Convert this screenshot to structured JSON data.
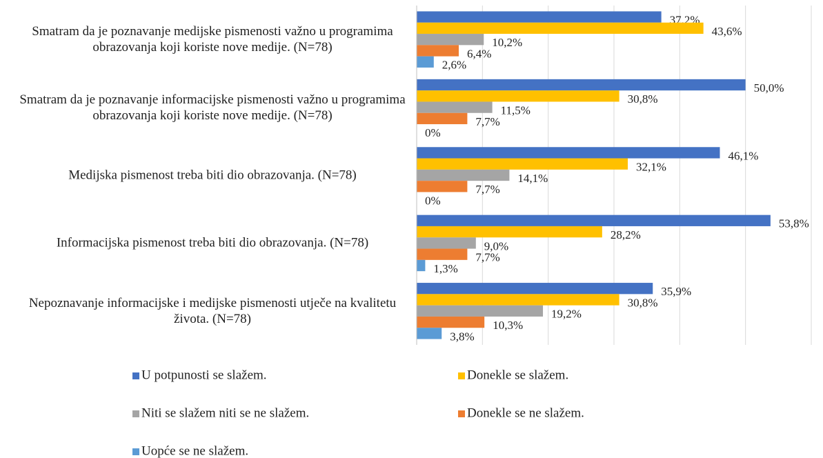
{
  "chart_data": {
    "type": "hbar",
    "categories": [
      "Smatram da je poznavanje medijske pismenosti važno u programima obrazovanja koji koriste nove medije. (N=78)",
      "Smatram da je poznavanje informacijske pismenosti važno u programima obrazovanja koji koriste nove medije. (N=78)",
      "Medijska pismenost treba biti dio obrazovanja. (N=78)",
      "Informacijska pismenost treba biti dio obrazovanja. (N=78)",
      "Nepoznavanje informacijske i medijske pismenosti utječe na kvalitetu života. (N=78)"
    ],
    "series": [
      {
        "name": "U potpunosti se slažem.",
        "color": "#4472c4",
        "values": [
          37.2,
          50.0,
          46.1,
          53.8,
          35.9
        ],
        "value_labels": [
          "37,2%",
          "50,0%",
          "46,1%",
          "53,8%",
          "35,9%"
        ]
      },
      {
        "name": "Donekle se slažem.",
        "color": "#ffc000",
        "values": [
          43.6,
          30.8,
          32.1,
          28.2,
          30.8
        ],
        "value_labels": [
          "43,6%",
          "30,8%",
          "32,1%",
          "28,2%",
          "30,8%"
        ]
      },
      {
        "name": "Niti se slažem niti se ne slažem.",
        "color": "#a5a5a5",
        "values": [
          10.2,
          11.5,
          14.1,
          9.0,
          19.2
        ],
        "value_labels": [
          "10,2%",
          "11,5%",
          "14,1%",
          "9,0%",
          "19,2%"
        ]
      },
      {
        "name": "Donekle se ne slažem.",
        "color": "#ed7d31",
        "values": [
          6.4,
          7.7,
          7.7,
          7.7,
          10.3
        ],
        "value_labels": [
          "6,4%",
          "7,7%",
          "7,7%",
          "7,7%",
          "10,3%"
        ]
      },
      {
        "name": "Uopće se ne slažem.",
        "color": "#5b9bd5",
        "values": [
          2.6,
          0,
          0,
          1.3,
          3.8
        ],
        "value_labels": [
          "2,6%",
          "0%",
          "0%",
          "1,3%",
          "3,8%"
        ]
      }
    ],
    "xlim": [
      0,
      60
    ],
    "xticks": [
      0,
      10,
      20,
      30,
      40,
      50,
      60
    ],
    "grid": true
  }
}
